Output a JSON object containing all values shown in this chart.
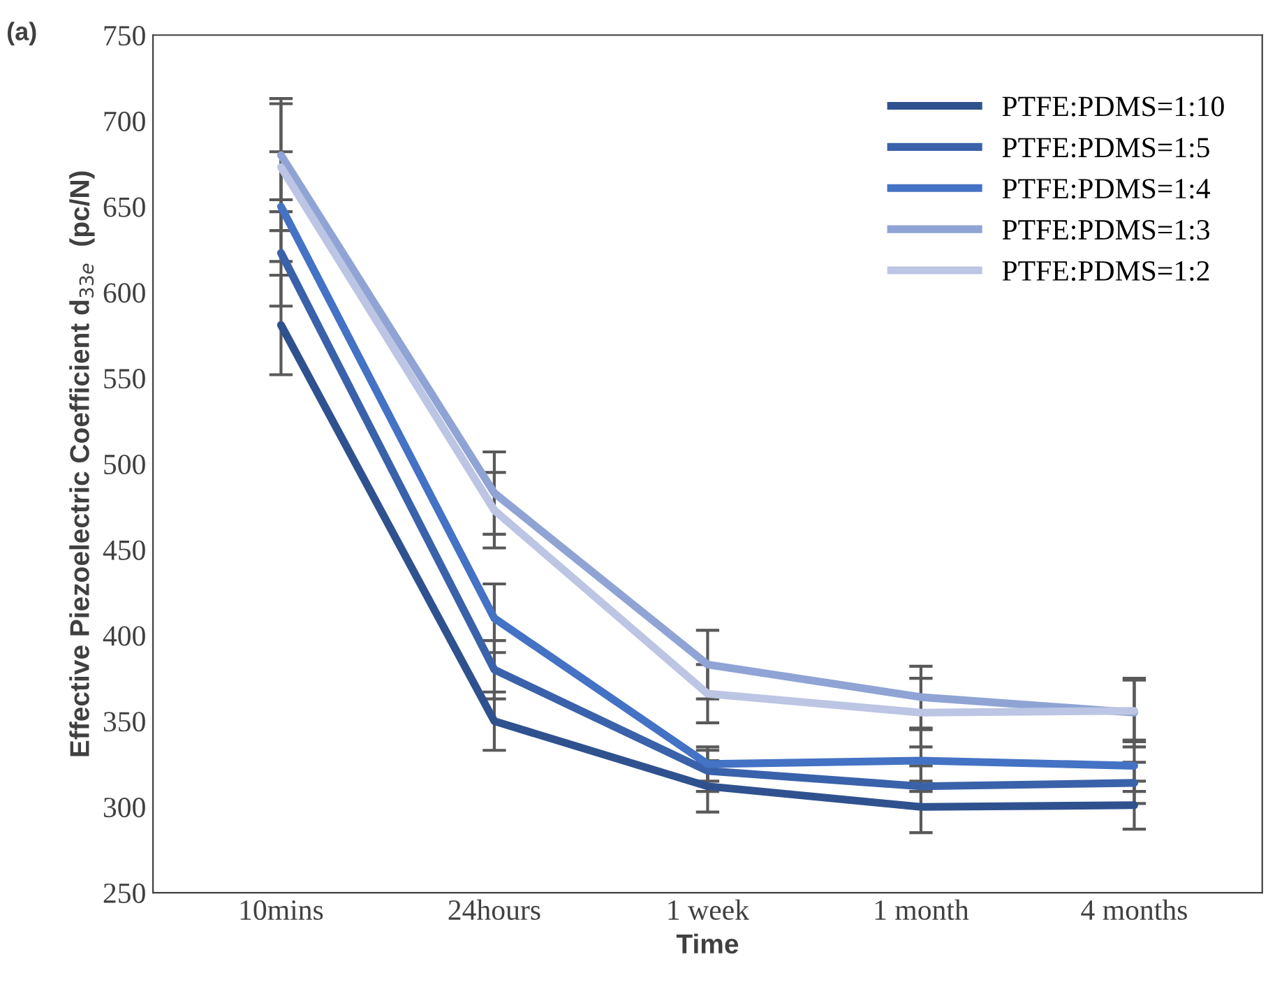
{
  "chart_data": {
    "type": "line",
    "xlabel": "Time",
    "ylabel": "Effective Piezoelectric Coefficient d$_{33e}$  (pc/N)",
    "annotations": [
      "(a)"
    ],
    "categories": [
      "10mins",
      "24hours",
      "1 week",
      "1 month",
      "4 months"
    ],
    "ylim": [
      250,
      750
    ],
    "yticks": [
      250,
      300,
      350,
      400,
      450,
      500,
      550,
      600,
      650,
      700,
      750
    ],
    "grid": false,
    "legend": "top right",
    "marker": "none",
    "line_style": "solid",
    "series": [
      {
        "name": "PTFE:PDMS=1:10",
        "color": "#2f528f",
        "values": [
          581,
          350,
          312,
          300,
          301
        ],
        "errors": [
          29,
          17,
          15,
          15,
          14
        ]
      },
      {
        "name": "PTFE:PDMS=1:5",
        "color": "#3a62aa",
        "values": [
          623,
          380,
          321,
          312,
          314
        ],
        "errors": [
          31,
          17,
          12,
          12,
          12
        ]
      },
      {
        "name": "PTFE:PDMS=1:4",
        "color": "#4472c4",
        "values": [
          650,
          410,
          325,
          327,
          324
        ],
        "errors": [
          32,
          20,
          10,
          18,
          15
        ]
      },
      {
        "name": "PTFE:PDMS=1:3",
        "color": "#8fa4d4",
        "values": [
          680,
          483,
          383,
          364,
          355
        ],
        "errors": [
          33,
          24,
          20,
          18,
          20
        ]
      },
      {
        "name": "PTFE:PDMS=1:2",
        "color": "#bcc5e3",
        "values": [
          673,
          473,
          366,
          355,
          356
        ],
        "errors": [
          37,
          22,
          17,
          20,
          18
        ]
      }
    ]
  }
}
